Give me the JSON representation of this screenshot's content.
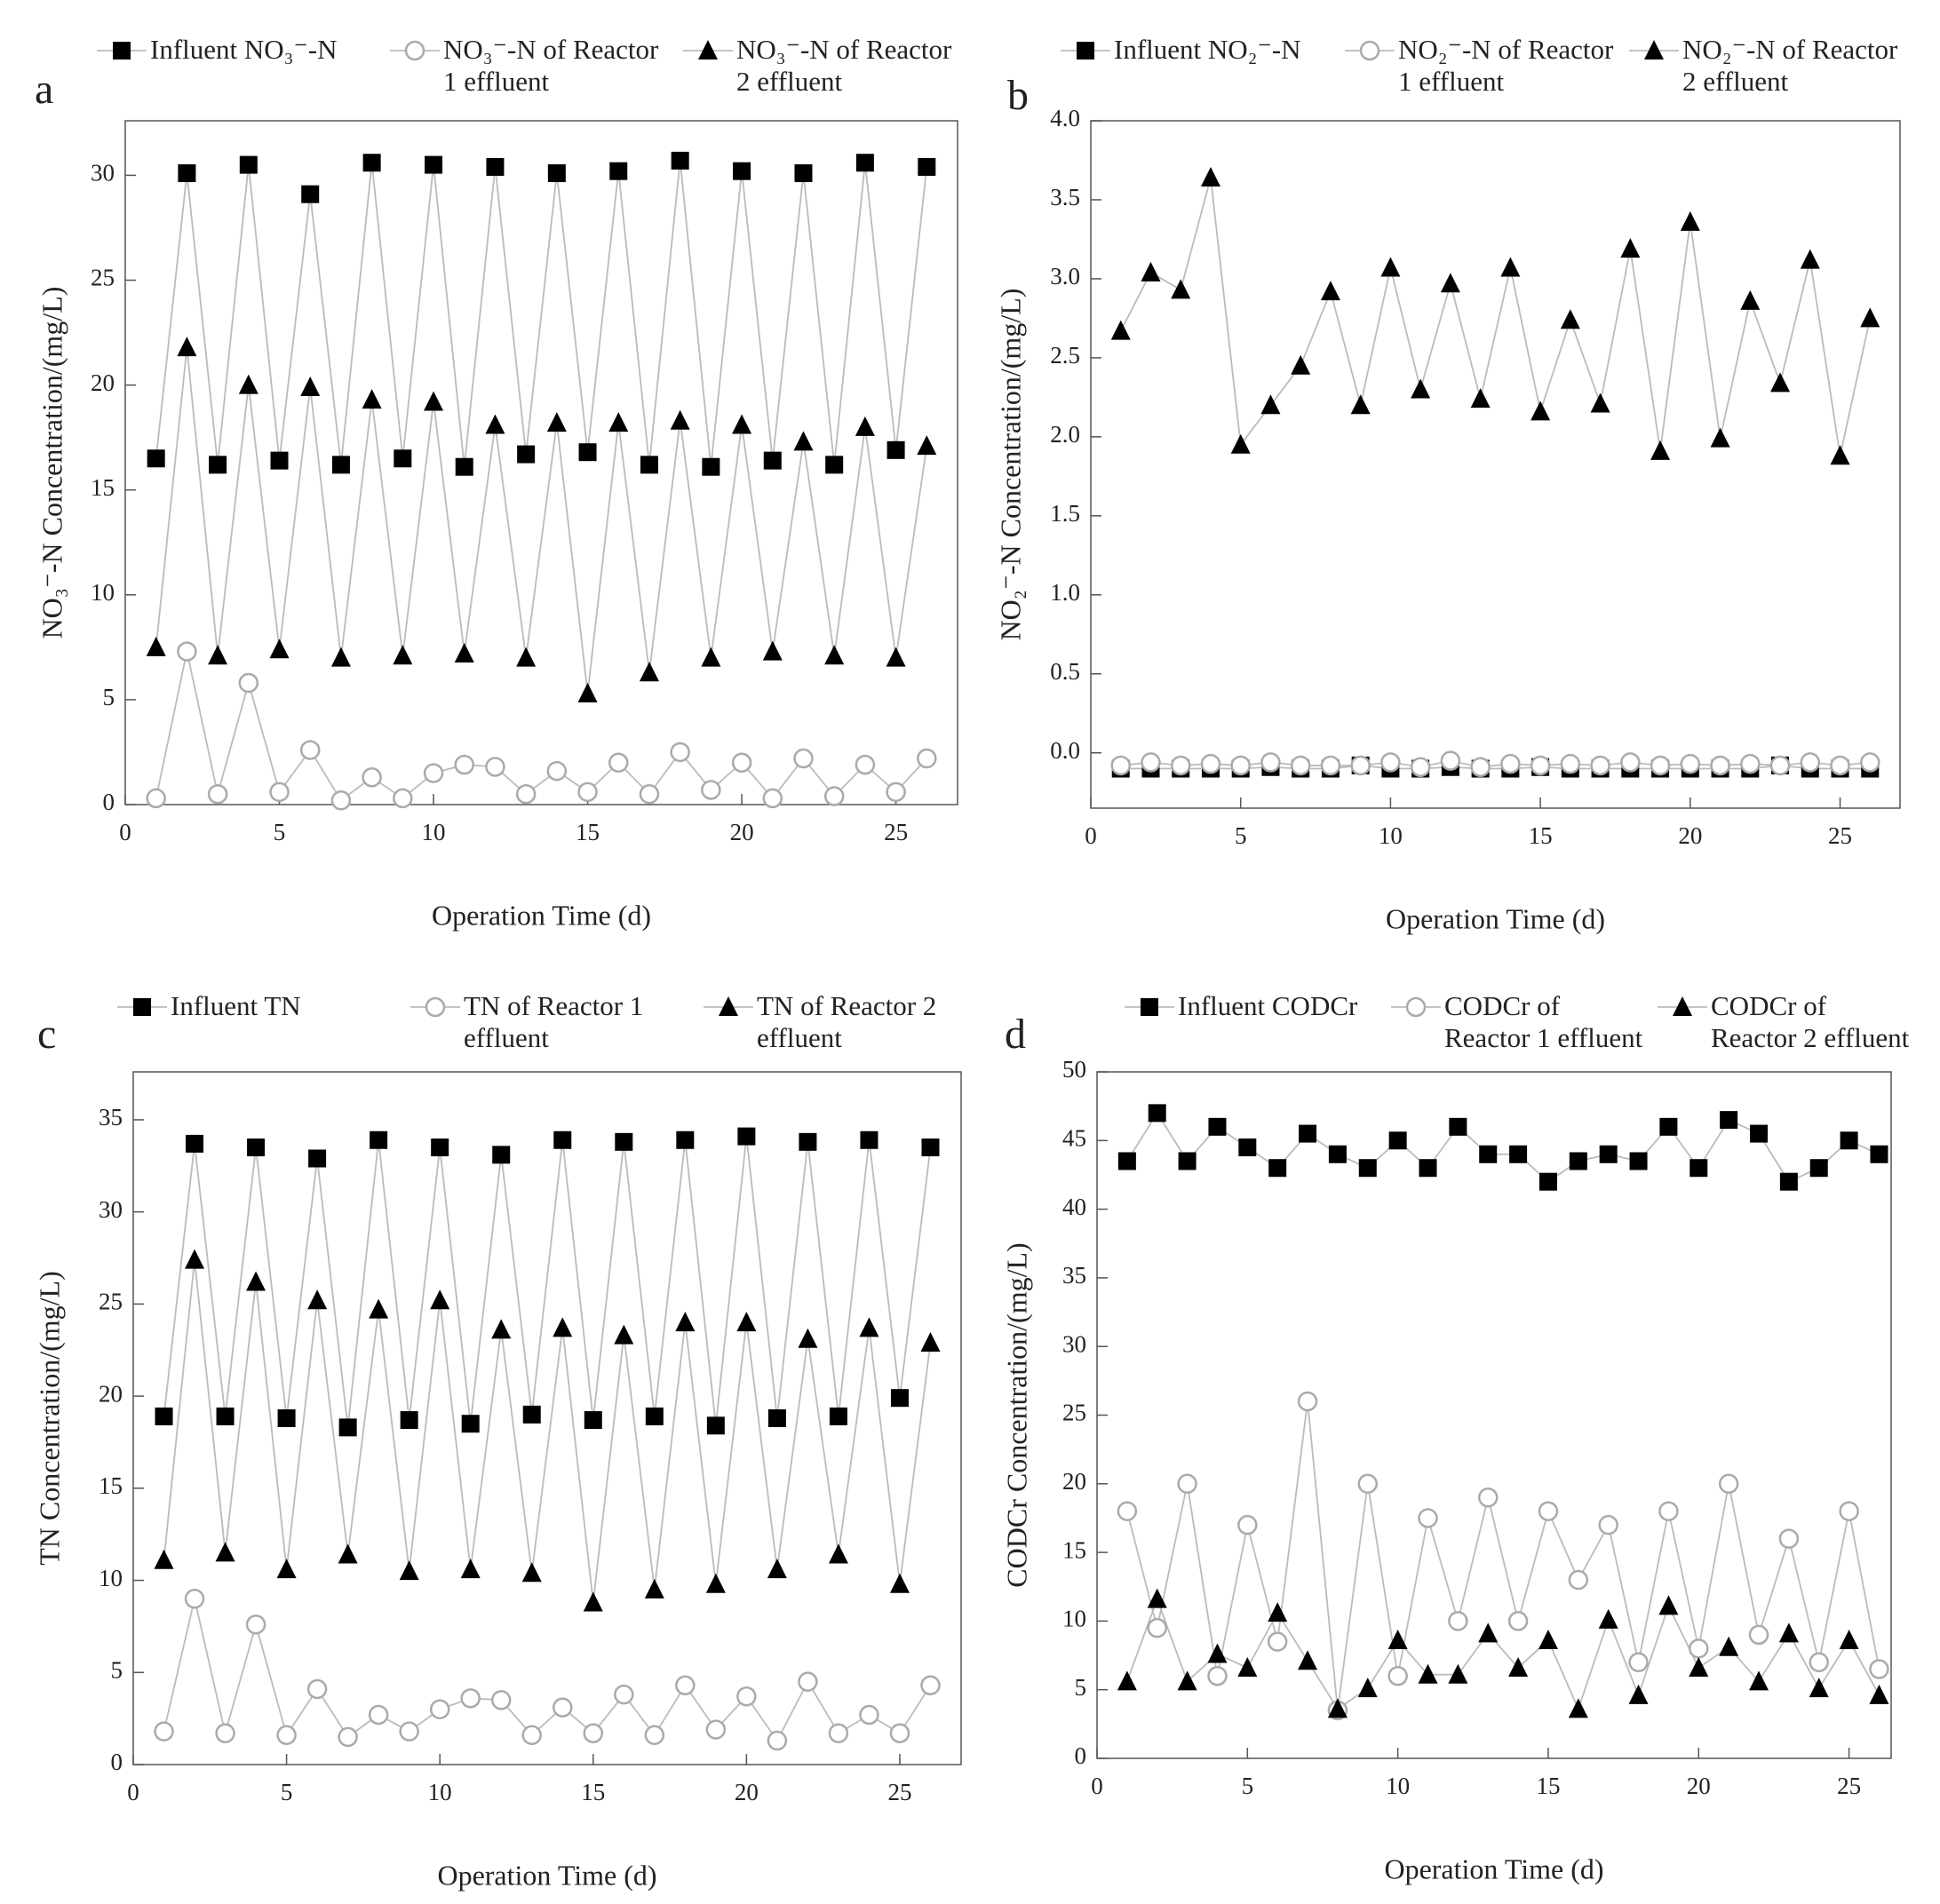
{
  "chart_data": [
    {
      "type": "line",
      "panel_label": "a",
      "x_label": "Operation Time (d)",
      "y_label": "NO₃⁻-N  Concentration/(mg/L)",
      "line_color": "#bbbbbb",
      "x": [
        1,
        2,
        3,
        4,
        5,
        6,
        7,
        8,
        9,
        10,
        11,
        12,
        13,
        14,
        15,
        16,
        17,
        18,
        19,
        20,
        21,
        22,
        23,
        24,
        25,
        26
      ],
      "xlim": [
        0,
        27
      ],
      "ylim": [
        0,
        32.6
      ],
      "xticks": [
        0,
        5,
        10,
        15,
        20,
        25
      ],
      "yticks": [
        0,
        5,
        10,
        15,
        20,
        25,
        30
      ],
      "series": [
        {
          "name": "Influent  NO₃⁻-N",
          "color": "#000000",
          "marker": "square",
          "values": [
            16.5,
            30.1,
            16.2,
            30.5,
            16.4,
            29.1,
            16.2,
            30.6,
            16.5,
            30.5,
            16.1,
            30.4,
            16.7,
            30.1,
            16.8,
            30.2,
            16.2,
            30.7,
            16.1,
            30.2,
            16.4,
            30.1,
            16.2,
            30.6,
            16.9,
            30.4
          ]
        },
        {
          "name": "NO₃⁻-N of Reactor 1 effluent",
          "color": "#aaaaaa",
          "marker": "circle",
          "values": [
            0.3,
            7.3,
            0.5,
            5.8,
            0.6,
            2.6,
            0.2,
            1.3,
            0.3,
            1.5,
            1.9,
            1.8,
            0.5,
            1.6,
            0.6,
            2.0,
            0.5,
            2.5,
            0.7,
            2.0,
            0.3,
            2.2,
            0.4,
            1.9,
            0.6,
            2.2
          ]
        },
        {
          "name": "NO₃⁻-N of Reactor 2 effluent",
          "color": "#000000",
          "marker": "triangle",
          "values": [
            7.5,
            21.8,
            7.1,
            20.0,
            7.4,
            19.9,
            7.0,
            19.3,
            7.1,
            19.2,
            7.2,
            18.1,
            7.0,
            18.2,
            5.3,
            18.2,
            6.3,
            18.3,
            7.0,
            18.1,
            7.3,
            17.3,
            7.1,
            18.0,
            7.0,
            17.1
          ]
        }
      ]
    },
    {
      "type": "line",
      "panel_label": "b",
      "x_label": "Operation Time (d)",
      "y_label": "NO₂⁻-N  Concentration/(mg/L)",
      "line_color": "#bbbbbb",
      "x": [
        1,
        2,
        3,
        4,
        5,
        6,
        7,
        8,
        9,
        10,
        11,
        12,
        13,
        14,
        15,
        16,
        17,
        18,
        19,
        20,
        21,
        22,
        23,
        24,
        25,
        26
      ],
      "xlim": [
        0,
        27
      ],
      "ylim": [
        -0.35,
        4.0
      ],
      "xticks": [
        0,
        5,
        10,
        15,
        20,
        25
      ],
      "yticks": [
        {
          "value": 0,
          "label": "0.0"
        },
        0.5,
        {
          "value": 1,
          "label": "1.0"
        },
        1.5,
        {
          "value": 2,
          "label": "2.0"
        },
        2.5,
        {
          "value": 3,
          "label": "3.0"
        },
        3.5,
        {
          "value": 4,
          "label": "4.0"
        }
      ],
      "series": [
        {
          "name": "Influent  NO₂⁻-N",
          "color": "#000000",
          "marker": "square",
          "values": [
            -0.1,
            -0.1,
            -0.1,
            -0.1,
            -0.1,
            -0.09,
            -0.1,
            -0.1,
            -0.08,
            -0.1,
            -0.1,
            -0.09,
            -0.1,
            -0.1,
            -0.09,
            -0.1,
            -0.1,
            -0.1,
            -0.1,
            -0.1,
            -0.1,
            -0.1,
            -0.08,
            -0.1,
            -0.1,
            -0.1
          ]
        },
        {
          "name": "NO₂⁻-N of Reactor 1 effluent",
          "color": "#aaaaaa",
          "marker": "circle",
          "values": [
            -0.08,
            -0.06,
            -0.08,
            -0.07,
            -0.08,
            -0.06,
            -0.08,
            -0.08,
            -0.08,
            -0.06,
            -0.09,
            -0.05,
            -0.09,
            -0.07,
            -0.08,
            -0.07,
            -0.08,
            -0.06,
            -0.08,
            -0.07,
            -0.08,
            -0.07,
            -0.08,
            -0.06,
            -0.08,
            -0.06
          ]
        },
        {
          "name": "NO₂⁻-N of Reactor 2 effluent",
          "color": "#000000",
          "marker": "triangle",
          "values": [
            2.67,
            3.04,
            2.93,
            3.64,
            1.95,
            2.2,
            2.45,
            2.92,
            2.2,
            3.07,
            2.3,
            2.97,
            2.24,
            3.07,
            2.16,
            2.74,
            2.21,
            3.19,
            1.91,
            3.36,
            1.99,
            2.86,
            2.34,
            3.12,
            1.88,
            2.75
          ]
        }
      ]
    },
    {
      "type": "line",
      "panel_label": "c",
      "x_label": "Operation Time (d)",
      "y_label": "TN  Concentration/(mg/L)",
      "line_color": "#bbbbbb",
      "x": [
        1,
        2,
        3,
        4,
        5,
        6,
        7,
        8,
        9,
        10,
        11,
        12,
        13,
        14,
        15,
        16,
        17,
        18,
        19,
        20,
        21,
        22,
        23,
        24,
        25,
        26
      ],
      "xlim": [
        0,
        27
      ],
      "ylim": [
        0,
        37.6
      ],
      "xticks": [
        0,
        5,
        10,
        15,
        20,
        25
      ],
      "yticks": [
        0,
        5,
        10,
        15,
        20,
        25,
        30,
        35
      ],
      "series": [
        {
          "name": "Influent  TN",
          "color": "#000000",
          "marker": "square",
          "values": [
            18.9,
            33.7,
            18.9,
            33.5,
            18.8,
            32.9,
            18.3,
            33.9,
            18.7,
            33.5,
            18.5,
            33.1,
            19.0,
            33.9,
            18.7,
            33.8,
            18.9,
            33.9,
            18.4,
            34.1,
            18.8,
            33.8,
            18.9,
            33.9,
            19.9,
            33.5
          ]
        },
        {
          "name": "TN of Reactor 1 effluent",
          "color": "#aaaaaa",
          "marker": "circle",
          "values": [
            1.8,
            9.0,
            1.7,
            7.6,
            1.6,
            4.1,
            1.5,
            2.7,
            1.8,
            3.0,
            3.6,
            3.5,
            1.6,
            3.1,
            1.7,
            3.8,
            1.6,
            4.3,
            1.9,
            3.7,
            1.3,
            4.5,
            1.7,
            2.7,
            1.7,
            4.3
          ]
        },
        {
          "name": "TN of Reactor 2 effluent",
          "color": "#000000",
          "marker": "triangle",
          "values": [
            11.1,
            27.4,
            11.5,
            26.2,
            10.6,
            25.2,
            11.4,
            24.7,
            10.5,
            25.2,
            10.6,
            23.6,
            10.4,
            23.7,
            8.8,
            23.3,
            9.5,
            24.0,
            9.8,
            24.0,
            10.6,
            23.1,
            11.4,
            23.7,
            9.8,
            22.9
          ]
        }
      ]
    },
    {
      "type": "line",
      "panel_label": "d",
      "x_label": "Operation Time  (d)",
      "y_label": "CODCr Concentration/(mg/L)",
      "line_color": "#bbbbbb",
      "x": [
        1,
        2,
        3,
        4,
        5,
        6,
        7,
        8,
        9,
        10,
        11,
        12,
        13,
        14,
        15,
        16,
        17,
        18,
        19,
        20,
        21,
        22,
        23,
        24,
        25,
        26
      ],
      "xlim": [
        0,
        26.4
      ],
      "ylim": [
        0,
        50
      ],
      "xticks": [
        0,
        5,
        10,
        15,
        20,
        25
      ],
      "yticks": [
        0,
        5,
        10,
        15,
        20,
        25,
        30,
        35,
        40,
        45,
        50
      ],
      "series": [
        {
          "name": "Influent  CODCr",
          "color": "#000000",
          "marker": "square",
          "values": [
            43.5,
            47,
            43.5,
            46,
            44.5,
            43,
            45.5,
            44,
            43,
            45,
            43,
            46,
            44,
            44,
            42,
            43.5,
            44,
            43.5,
            46,
            43,
            46.5,
            45.5,
            42,
            43,
            45,
            44
          ]
        },
        {
          "name": "CODCr of Reactor 1 effluent",
          "color": "#aaaaaa",
          "marker": "circle",
          "values": [
            18,
            9.5,
            20,
            6,
            17,
            8.5,
            26,
            3.5,
            20,
            6,
            17.5,
            10,
            19,
            10,
            18,
            13,
            17,
            7,
            18,
            8,
            20,
            9,
            16,
            7,
            18,
            6.5
          ]
        },
        {
          "name": "CODCr of Reactor 2 effluent",
          "color": "#000000",
          "marker": "triangle",
          "values": [
            5.6,
            11.6,
            5.6,
            7.6,
            6.6,
            10.6,
            7.1,
            3.6,
            5.1,
            8.6,
            6.1,
            6.1,
            9.1,
            6.6,
            8.6,
            3.6,
            10.1,
            4.6,
            11.1,
            6.6,
            8.1,
            5.6,
            9.1,
            5.1,
            8.6,
            4.6
          ]
        }
      ]
    }
  ]
}
